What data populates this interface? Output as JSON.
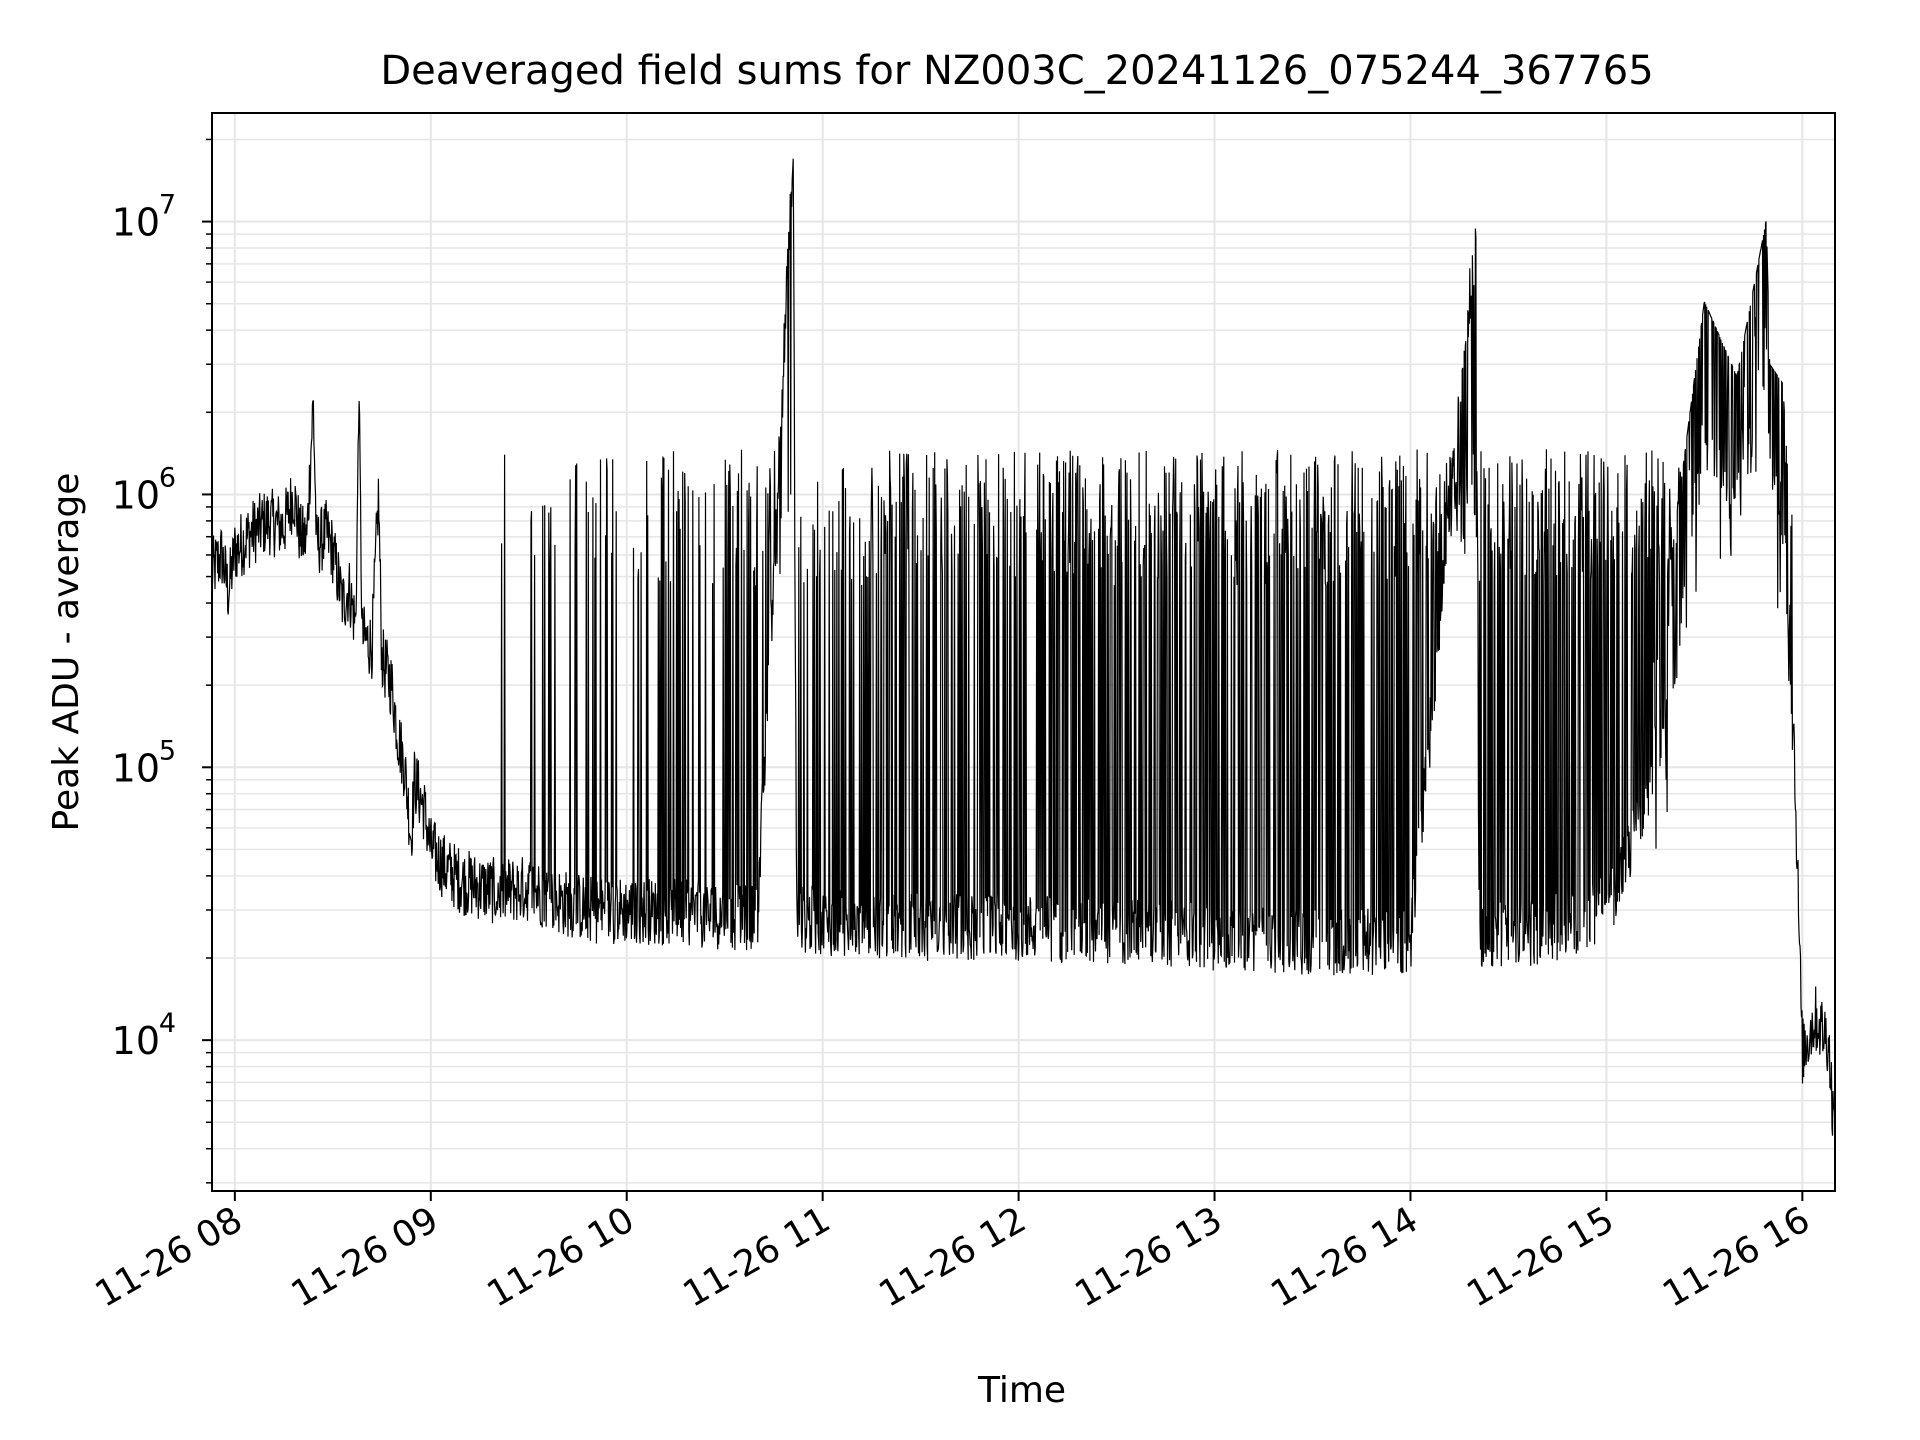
{
  "chart_data": {
    "type": "line",
    "title": "Deaveraged field sums for NZ003C_20241126_075244_367765",
    "xlabel": "Time",
    "ylabel": "Peak ADU - average",
    "yscale": "log",
    "ylim": [
      2800,
      25000000
    ],
    "xlim": [
      "2024-11-26 07:53",
      "2024-11-26 16:10"
    ],
    "grid": true,
    "line_color": "#000000",
    "grid_color": "#e6e6e6",
    "x_ticks": [
      {
        "t": "2024-11-26 08:00",
        "label": "11-26 08"
      },
      {
        "t": "2024-11-26 09:00",
        "label": "11-26 09"
      },
      {
        "t": "2024-11-26 10:00",
        "label": "11-26 10"
      },
      {
        "t": "2024-11-26 11:00",
        "label": "11-26 11"
      },
      {
        "t": "2024-11-26 12:00",
        "label": "11-26 12"
      },
      {
        "t": "2024-11-26 13:00",
        "label": "11-26 13"
      },
      {
        "t": "2024-11-26 14:00",
        "label": "11-26 14"
      },
      {
        "t": "2024-11-26 15:00",
        "label": "11-26 15"
      },
      {
        "t": "2024-11-26 16:00",
        "label": "11-26 16"
      }
    ],
    "y_ticks": [
      {
        "value": 10000,
        "base": "10",
        "exp": "4"
      },
      {
        "value": 100000,
        "base": "10",
        "exp": "5"
      },
      {
        "value": 1000000,
        "base": "10",
        "exp": "6"
      },
      {
        "value": 10000000,
        "base": "10",
        "exp": "7"
      }
    ],
    "series": [
      {
        "name": "",
        "description_pairs": "[time, value] approximate envelope/peaks of the dense trace",
        "points": [
          [
            "2024-11-26 07:53",
            520000
          ],
          [
            "2024-11-26 07:56",
            600000
          ],
          [
            "2024-11-26 07:58",
            440000
          ],
          [
            "2024-11-26 08:00",
            620000
          ],
          [
            "2024-11-26 08:05",
            720000
          ],
          [
            "2024-11-26 08:10",
            800000
          ],
          [
            "2024-11-26 08:15",
            760000
          ],
          [
            "2024-11-26 08:18",
            1000000
          ],
          [
            "2024-11-26 08:20",
            700000
          ],
          [
            "2024-11-26 08:22",
            680000
          ],
          [
            "2024-11-26 08:24",
            2200000
          ],
          [
            "2024-11-26 08:25",
            650000
          ],
          [
            "2024-11-26 08:28",
            720000
          ],
          [
            "2024-11-26 08:30",
            620000
          ],
          [
            "2024-11-26 08:33",
            400000
          ],
          [
            "2024-11-26 08:35",
            450000
          ],
          [
            "2024-11-26 08:37",
            330000
          ],
          [
            "2024-11-26 08:38",
            2200000
          ],
          [
            "2024-11-26 08:39",
            300000
          ],
          [
            "2024-11-26 08:42",
            280000
          ],
          [
            "2024-11-26 08:44",
            1000000
          ],
          [
            "2024-11-26 08:45",
            250000
          ],
          [
            "2024-11-26 08:48",
            200000
          ],
          [
            "2024-11-26 08:50",
            130000
          ],
          [
            "2024-11-26 08:52",
            100000
          ],
          [
            "2024-11-26 08:54",
            55000
          ],
          [
            "2024-11-26 08:55",
            90000
          ],
          [
            "2024-11-26 08:58",
            70000
          ],
          [
            "2024-11-26 09:00",
            50000
          ],
          [
            "2024-11-26 09:03",
            45000
          ],
          [
            "2024-11-26 09:05",
            42000
          ],
          [
            "2024-11-26 09:10",
            38000
          ],
          [
            "2024-11-26 09:20",
            35000
          ],
          [
            "2024-11-26 09:30",
            36000
          ],
          [
            "2024-11-26 09:40",
            32000
          ],
          [
            "2024-11-26 09:50",
            30000
          ],
          [
            "2024-11-26 10:00",
            30000
          ],
          [
            "2024-11-26 10:20",
            29000
          ],
          [
            "2024-11-26 10:40",
            28000
          ],
          [
            "2024-11-26 10:51",
            17000000
          ],
          [
            "2024-11-26 10:52",
            28000
          ],
          [
            "2024-11-26 11:00",
            27000
          ],
          [
            "2024-11-26 11:30",
            26000
          ],
          [
            "2024-11-26 12:00",
            26000
          ],
          [
            "2024-11-26 12:30",
            25000
          ],
          [
            "2024-11-26 13:00",
            24000
          ],
          [
            "2024-11-26 13:30",
            23000
          ],
          [
            "2024-11-26 14:00",
            23000
          ],
          [
            "2024-11-26 14:20",
            8700000
          ],
          [
            "2024-11-26 14:21",
            24000
          ],
          [
            "2024-11-26 14:40",
            25000
          ],
          [
            "2024-11-26 15:00",
            30000
          ],
          [
            "2024-11-26 15:10",
            60000
          ],
          [
            "2024-11-26 15:20",
            200000
          ],
          [
            "2024-11-26 15:30",
            1700000
          ],
          [
            "2024-11-26 15:40",
            900000
          ],
          [
            "2024-11-26 15:49",
            3400000
          ],
          [
            "2024-11-26 15:50",
            1000000
          ],
          [
            "2024-11-26 15:54",
            850000
          ],
          [
            "2024-11-26 15:57",
            200000
          ],
          [
            "2024-11-26 16:00",
            9000
          ],
          [
            "2024-11-26 16:04",
            12000
          ],
          [
            "2024-11-26 16:08",
            10000
          ],
          [
            "2024-11-26 16:10",
            4200
          ]
        ],
        "band_low": 25000,
        "band_high": 1100000
      }
    ]
  }
}
